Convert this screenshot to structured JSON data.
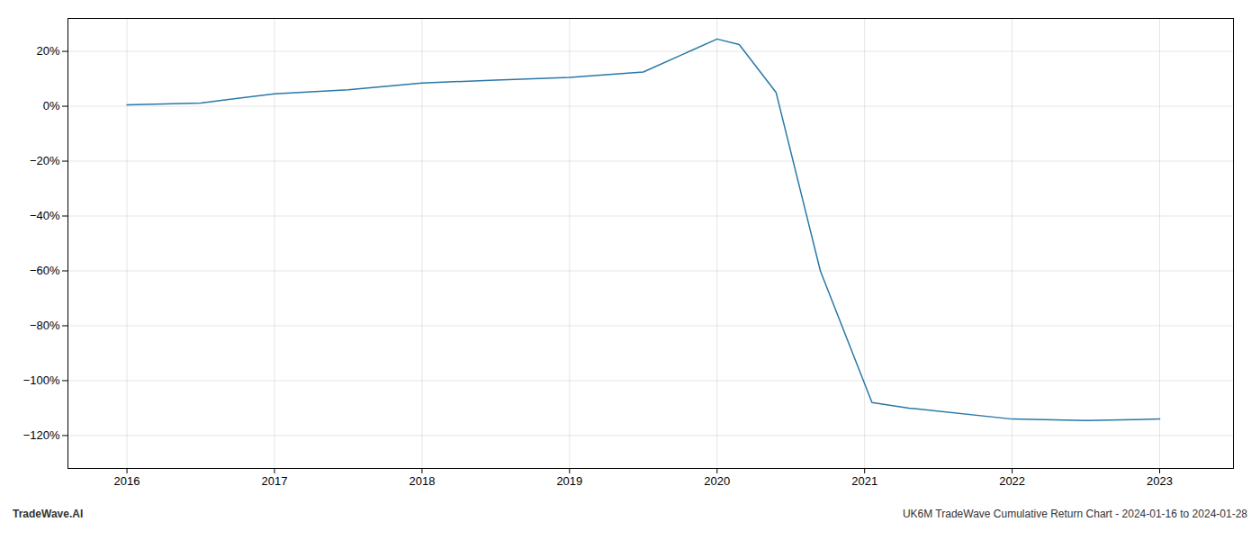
{
  "chart_data": {
    "type": "line",
    "x": [
      2016.0,
      2016.5,
      2017.0,
      2017.5,
      2018.0,
      2018.5,
      2019.0,
      2019.5,
      2020.0,
      2020.15,
      2020.4,
      2020.7,
      2021.05,
      2021.3,
      2022.0,
      2022.5,
      2023.0
    ],
    "values": [
      0.5,
      1.2,
      4.5,
      6.0,
      8.5,
      9.5,
      10.5,
      12.5,
      24.5,
      22.5,
      5.0,
      -60.0,
      -108.0,
      -110.0,
      -114.0,
      -114.5,
      -114.0
    ],
    "color": "#2878a8",
    "xlim": [
      2015.6,
      2023.5
    ],
    "ylim": [
      -132,
      32
    ],
    "xticks": [
      2016,
      2017,
      2018,
      2019,
      2020,
      2021,
      2022,
      2023
    ],
    "yticks": [
      {
        "value": 20,
        "label": "20%"
      },
      {
        "value": 0,
        "label": "0%"
      },
      {
        "value": -20,
        "label": "−20%"
      },
      {
        "value": -40,
        "label": "−40%"
      },
      {
        "value": -60,
        "label": "−60%"
      },
      {
        "value": -80,
        "label": "−80%"
      },
      {
        "value": -100,
        "label": "−100%"
      },
      {
        "value": -120,
        "label": "−120%"
      }
    ],
    "grid": true,
    "annotations": [
      "TradeWave.AI",
      "UK6M TradeWave Cumulative Return Chart - 2024-01-16 to 2024-01-28"
    ]
  }
}
